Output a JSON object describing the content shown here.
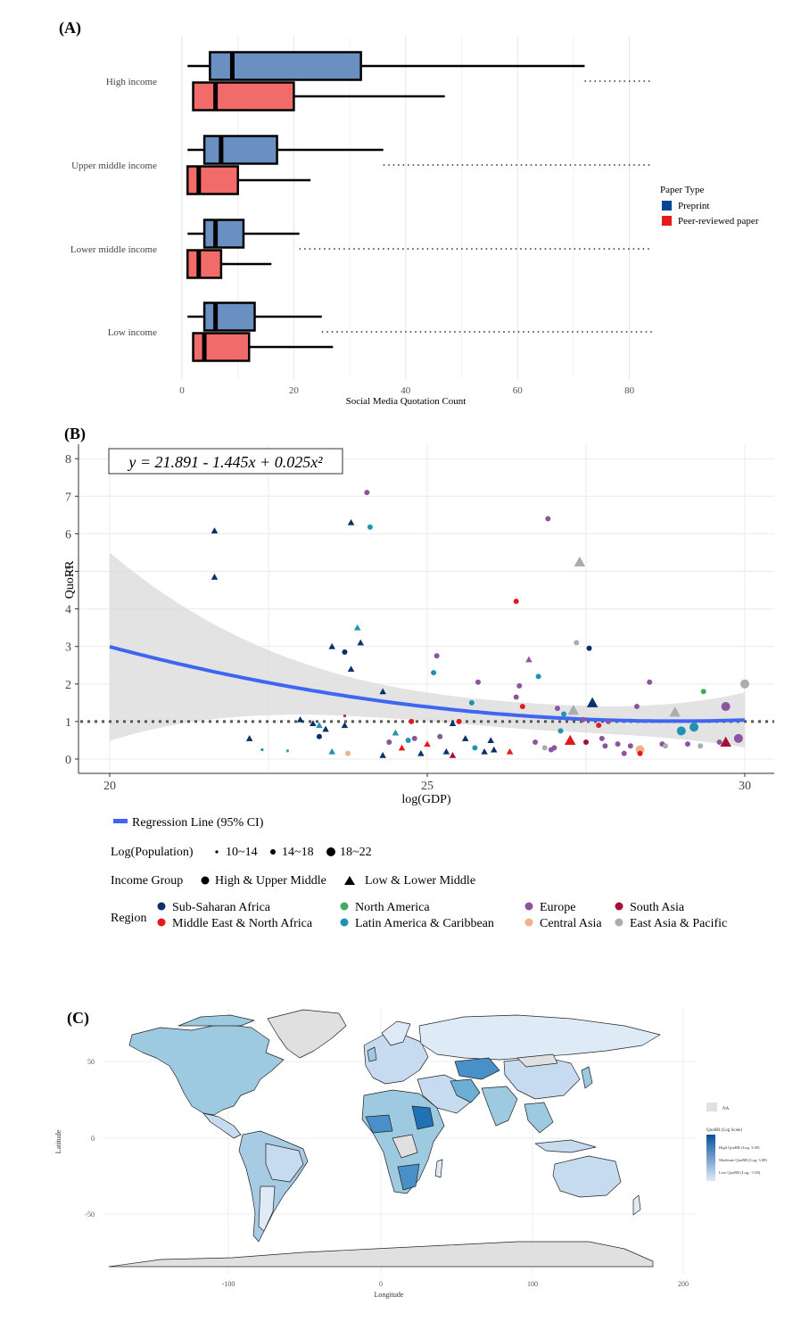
{
  "panel_a": {
    "letter": "(A)",
    "legend_title": "Paper Type",
    "legend_items": [
      {
        "label": "Preprint",
        "color": "#084594"
      },
      {
        "label": "Peer-reviewed paper",
        "color": "#e41a1c"
      }
    ],
    "colors": {
      "preprint_fill": "#6a8fc1",
      "peer_fill": "#f16b6b"
    }
  },
  "panel_b": {
    "letter": "(B)",
    "equation": "y = 21.891 - 1.445x + 0.025x²",
    "legend": {
      "regression_label": "Regression Line (95% CI)",
      "population_title": "Log(Population)",
      "population_levels": [
        "10~14",
        "14~18",
        "18~22"
      ],
      "income_title": "Income Group",
      "income_levels": [
        "High & Upper Middle",
        "Low & Lower Middle"
      ],
      "region_title": "Region",
      "regions": [
        {
          "label": "Sub-Saharan Africa",
          "color": "#08306b"
        },
        {
          "label": "North America",
          "color": "#41ab5d"
        },
        {
          "label": "Europe",
          "color": "#8c55a0"
        },
        {
          "label": "South Asia",
          "color": "#a50f35"
        },
        {
          "label": "Middle East & North Africa",
          "color": "#e31a1c"
        },
        {
          "label": "Latin America & Caribbean",
          "color": "#1f93b0"
        },
        {
          "label": "Central Asia",
          "color": "#f4b08a"
        },
        {
          "label": "East Asia & Pacific",
          "color": "#a8aeb0"
        }
      ]
    }
  },
  "panel_c": {
    "letter": "(C)",
    "xlabel": "Longitude",
    "ylabel": "Latitude",
    "x_ticks": [
      "-100",
      "0",
      "100",
      "200"
    ],
    "y_ticks": [
      "50",
      "0",
      "-50"
    ],
    "legend_na": "NA",
    "legend_title": "QuoRR (Log Scale)",
    "legend_levels": [
      "High QuoRR (Log: 3.00)",
      "Moderate QuoRR (Log: 3.00)",
      "Low QuoRR (Log: -1.00)"
    ],
    "colors": {
      "na": "#e0e0e0",
      "high": "#08519c",
      "low": "#deebf7"
    }
  },
  "chart_data": [
    {
      "type": "boxplot",
      "xlabel": "Social Media Quotation Count",
      "xlim": [
        0,
        85
      ],
      "x_ticks": [
        0,
        20,
        40,
        60,
        80
      ],
      "categories": [
        "High income",
        "Upper middle income",
        "Lower middle income",
        "Low income"
      ],
      "series": [
        {
          "name": "Preprint",
          "boxes": [
            {
              "whisker_low": 1,
              "q1": 5,
              "median": 9,
              "q3": 32,
              "whisker_high": 72
            },
            {
              "whisker_low": 1,
              "q1": 4,
              "median": 7,
              "q3": 17,
              "whisker_high": 36
            },
            {
              "whisker_low": 1,
              "q1": 4,
              "median": 6,
              "q3": 11,
              "whisker_high": 21
            },
            {
              "whisker_low": 1,
              "q1": 4,
              "median": 6,
              "q3": 13,
              "whisker_high": 25
            }
          ]
        },
        {
          "name": "Peer-reviewed paper",
          "boxes": [
            {
              "whisker_low": 2,
              "q1": 2,
              "median": 6,
              "q3": 20,
              "whisker_high": 47
            },
            {
              "whisker_low": 1,
              "q1": 1,
              "median": 3,
              "q3": 10,
              "whisker_high": 23
            },
            {
              "whisker_low": 1,
              "q1": 1,
              "median": 3,
              "q3": 7,
              "whisker_high": 16
            },
            {
              "whisker_low": 2,
              "q1": 2,
              "median": 4,
              "q3": 12,
              "whisker_high": 27
            }
          ]
        }
      ],
      "outlier_extent": [
        {
          "from": 72,
          "to": 84
        },
        {
          "from": 36,
          "to": 84
        },
        {
          "from": 21,
          "to": 84
        },
        {
          "from": 25,
          "to": 84
        }
      ]
    },
    {
      "type": "scatter",
      "xlabel": "log(GDP)",
      "ylabel": "QuoRR",
      "xlim": [
        20,
        30
      ],
      "ylim": [
        0,
        8
      ],
      "x_ticks": [
        20,
        25,
        30
      ],
      "y_ticks": [
        0,
        1,
        2,
        3,
        4,
        5,
        6,
        7,
        8
      ],
      "reference_line": 1,
      "regression": {
        "intercept": 21.891,
        "b1": -1.445,
        "b2": 0.025,
        "x_range": [
          20,
          30
        ]
      },
      "points": [
        {
          "x": 21.65,
          "y": 6.08,
          "region": "Sub-Saharan Africa",
          "income": "low",
          "pop": 2
        },
        {
          "x": 21.65,
          "y": 4.85,
          "region": "Sub-Saharan Africa",
          "income": "low",
          "pop": 2
        },
        {
          "x": 22.2,
          "y": 0.55,
          "region": "Sub-Saharan Africa",
          "income": "low",
          "pop": 2
        },
        {
          "x": 22.4,
          "y": 0.25,
          "region": "Latin America & Caribbean",
          "income": "high",
          "pop": 1
        },
        {
          "x": 22.8,
          "y": 0.22,
          "region": "North America",
          "income": "high",
          "pop": 1
        },
        {
          "x": 23.0,
          "y": 1.05,
          "region": "Sub-Saharan Africa",
          "income": "low",
          "pop": 2
        },
        {
          "x": 23.2,
          "y": 0.95,
          "region": "Sub-Saharan Africa",
          "income": "low",
          "pop": 2
        },
        {
          "x": 23.3,
          "y": 0.6,
          "region": "Sub-Saharan Africa",
          "income": "high",
          "pop": 2
        },
        {
          "x": 23.3,
          "y": 0.9,
          "region": "Latin America & Caribbean",
          "income": "low",
          "pop": 2
        },
        {
          "x": 23.4,
          "y": 0.8,
          "region": "Sub-Saharan Africa",
          "income": "low",
          "pop": 2
        },
        {
          "x": 23.5,
          "y": 0.2,
          "region": "Latin America & Caribbean",
          "income": "low",
          "pop": 2
        },
        {
          "x": 23.5,
          "y": 3.0,
          "region": "Sub-Saharan Africa",
          "income": "low",
          "pop": 2
        },
        {
          "x": 23.7,
          "y": 2.85,
          "region": "Sub-Saharan Africa",
          "income": "high",
          "pop": 2
        },
        {
          "x": 23.7,
          "y": 0.9,
          "region": "Sub-Saharan Africa",
          "income": "low",
          "pop": 2
        },
        {
          "x": 23.7,
          "y": 1.15,
          "region": "Middle East & North Africa",
          "income": "high",
          "pop": 1
        },
        {
          "x": 23.75,
          "y": 0.15,
          "region": "Central Asia",
          "income": "high",
          "pop": 2
        },
        {
          "x": 23.8,
          "y": 6.3,
          "region": "Sub-Saharan Africa",
          "income": "low",
          "pop": 2
        },
        {
          "x": 23.8,
          "y": 2.4,
          "region": "Sub-Saharan Africa",
          "income": "low",
          "pop": 2
        },
        {
          "x": 23.9,
          "y": 3.5,
          "region": "Latin America & Caribbean",
          "income": "low",
          "pop": 2
        },
        {
          "x": 23.95,
          "y": 3.1,
          "region": "Sub-Saharan Africa",
          "income": "low",
          "pop": 2
        },
        {
          "x": 24.05,
          "y": 7.1,
          "region": "Europe",
          "income": "high",
          "pop": 2
        },
        {
          "x": 24.1,
          "y": 6.18,
          "region": "Latin America & Caribbean",
          "income": "high",
          "pop": 2
        },
        {
          "x": 24.3,
          "y": 1.8,
          "region": "Sub-Saharan Africa",
          "income": "low",
          "pop": 2
        },
        {
          "x": 24.3,
          "y": 0.1,
          "region": "Sub-Saharan Africa",
          "income": "low",
          "pop": 2
        },
        {
          "x": 24.4,
          "y": 0.45,
          "region": "Europe",
          "income": "high",
          "pop": 2
        },
        {
          "x": 24.5,
          "y": 0.7,
          "region": "Latin America & Caribbean",
          "income": "low",
          "pop": 2
        },
        {
          "x": 24.6,
          "y": 0.3,
          "region": "Middle East & North Africa",
          "income": "low",
          "pop": 2
        },
        {
          "x": 24.7,
          "y": 0.5,
          "region": "Latin America & Caribbean",
          "income": "high",
          "pop": 2
        },
        {
          "x": 24.75,
          "y": 1.0,
          "region": "Middle East & North Africa",
          "income": "high",
          "pop": 2
        },
        {
          "x": 24.8,
          "y": 0.55,
          "region": "Europe",
          "income": "high",
          "pop": 2
        },
        {
          "x": 24.9,
          "y": 0.15,
          "region": "Sub-Saharan Africa",
          "income": "low",
          "pop": 2
        },
        {
          "x": 25.0,
          "y": 0.4,
          "region": "Middle East & North Africa",
          "income": "low",
          "pop": 2
        },
        {
          "x": 25.1,
          "y": 2.3,
          "region": "Latin America & Caribbean",
          "income": "high",
          "pop": 2
        },
        {
          "x": 25.15,
          "y": 2.75,
          "region": "Europe",
          "income": "high",
          "pop": 2
        },
        {
          "x": 25.2,
          "y": 0.6,
          "region": "Europe",
          "income": "high",
          "pop": 2
        },
        {
          "x": 25.3,
          "y": 0.2,
          "region": "Sub-Saharan Africa",
          "income": "low",
          "pop": 2
        },
        {
          "x": 25.4,
          "y": 0.95,
          "region": "Sub-Saharan Africa",
          "income": "low",
          "pop": 2
        },
        {
          "x": 25.4,
          "y": 0.1,
          "region": "South Asia",
          "income": "low",
          "pop": 2
        },
        {
          "x": 25.5,
          "y": 1.0,
          "region": "Middle East & North Africa",
          "income": "high",
          "pop": 2
        },
        {
          "x": 25.6,
          "y": 0.55,
          "region": "Sub-Saharan Africa",
          "income": "low",
          "pop": 2
        },
        {
          "x": 25.7,
          "y": 1.5,
          "region": "Latin America & Caribbean",
          "income": "high",
          "pop": 2
        },
        {
          "x": 25.75,
          "y": 0.3,
          "region": "Latin America & Caribbean",
          "income": "high",
          "pop": 2
        },
        {
          "x": 25.8,
          "y": 2.05,
          "region": "Europe",
          "income": "high",
          "pop": 2
        },
        {
          "x": 25.9,
          "y": 0.2,
          "region": "Sub-Saharan Africa",
          "income": "low",
          "pop": 2
        },
        {
          "x": 26.0,
          "y": 0.5,
          "region": "Sub-Saharan Africa",
          "income": "low",
          "pop": 2
        },
        {
          "x": 26.05,
          "y": 0.25,
          "region": "Sub-Saharan Africa",
          "income": "low",
          "pop": 2
        },
        {
          "x": 26.3,
          "y": 0.2,
          "region": "Middle East & North Africa",
          "income": "low",
          "pop": 2
        },
        {
          "x": 26.4,
          "y": 4.2,
          "region": "Middle East & North Africa",
          "income": "high",
          "pop": 2
        },
        {
          "x": 26.4,
          "y": 1.65,
          "region": "Europe",
          "income": "high",
          "pop": 2
        },
        {
          "x": 26.45,
          "y": 1.95,
          "region": "Europe",
          "income": "high",
          "pop": 2
        },
        {
          "x": 26.5,
          "y": 1.4,
          "region": "Middle East & North Africa",
          "income": "high",
          "pop": 2
        },
        {
          "x": 26.6,
          "y": 2.65,
          "region": "Europe",
          "income": "low",
          "pop": 2
        },
        {
          "x": 26.7,
          "y": 0.45,
          "region": "Europe",
          "income": "high",
          "pop": 2
        },
        {
          "x": 26.75,
          "y": 2.2,
          "region": "Latin America & Caribbean",
          "income": "high",
          "pop": 2
        },
        {
          "x": 26.85,
          "y": 0.3,
          "region": "East Asia & Pacific",
          "income": "high",
          "pop": 2
        },
        {
          "x": 26.9,
          "y": 6.4,
          "region": "Europe",
          "income": "high",
          "pop": 2
        },
        {
          "x": 26.95,
          "y": 0.25,
          "region": "Europe",
          "income": "high",
          "pop": 2
        },
        {
          "x": 27.0,
          "y": 0.3,
          "region": "Europe",
          "income": "high",
          "pop": 2
        },
        {
          "x": 27.05,
          "y": 1.35,
          "region": "Europe",
          "income": "high",
          "pop": 2
        },
        {
          "x": 27.1,
          "y": 0.75,
          "region": "Latin America & Caribbean",
          "income": "high",
          "pop": 2
        },
        {
          "x": 27.15,
          "y": 1.2,
          "region": "Latin America & Caribbean",
          "income": "high",
          "pop": 2
        },
        {
          "x": 27.25,
          "y": 0.5,
          "region": "Middle East & North Africa",
          "income": "low",
          "pop": 3
        },
        {
          "x": 27.3,
          "y": 1.3,
          "region": "East Asia & Pacific",
          "income": "low",
          "pop": 3
        },
        {
          "x": 27.35,
          "y": 3.1,
          "region": "East Asia & Pacific",
          "income": "high",
          "pop": 2
        },
        {
          "x": 27.4,
          "y": 5.25,
          "region": "East Asia & Pacific",
          "income": "low",
          "pop": 3
        },
        {
          "x": 27.45,
          "y": 1.05,
          "region": "Europe",
          "income": "high",
          "pop": 2
        },
        {
          "x": 27.5,
          "y": 0.45,
          "region": "South Asia",
          "income": "high",
          "pop": 2
        },
        {
          "x": 27.55,
          "y": 2.95,
          "region": "Sub-Saharan Africa",
          "income": "high",
          "pop": 2
        },
        {
          "x": 27.6,
          "y": 1.5,
          "region": "Sub-Saharan Africa",
          "income": "low",
          "pop": 3
        },
        {
          "x": 27.7,
          "y": 0.9,
          "region": "Middle East & North Africa",
          "income": "high",
          "pop": 2
        },
        {
          "x": 27.75,
          "y": 0.55,
          "region": "Europe",
          "income": "high",
          "pop": 2
        },
        {
          "x": 27.8,
          "y": 0.35,
          "region": "Europe",
          "income": "high",
          "pop": 2
        },
        {
          "x": 27.85,
          "y": 1.0,
          "region": "Europe",
          "income": "high",
          "pop": 2
        },
        {
          "x": 28.0,
          "y": 0.4,
          "region": "Europe",
          "income": "high",
          "pop": 2
        },
        {
          "x": 28.1,
          "y": 0.15,
          "region": "Europe",
          "income": "high",
          "pop": 2
        },
        {
          "x": 28.2,
          "y": 0.35,
          "region": "Europe",
          "income": "high",
          "pop": 2
        },
        {
          "x": 28.3,
          "y": 1.4,
          "region": "Europe",
          "income": "high",
          "pop": 2
        },
        {
          "x": 28.35,
          "y": 0.25,
          "region": "Central Asia",
          "income": "high",
          "pop": 3
        },
        {
          "x": 28.35,
          "y": 0.15,
          "region": "Middle East & North Africa",
          "income": "high",
          "pop": 2
        },
        {
          "x": 28.5,
          "y": 2.05,
          "region": "Europe",
          "income": "high",
          "pop": 2
        },
        {
          "x": 28.7,
          "y": 0.4,
          "region": "Europe",
          "income": "high",
          "pop": 2
        },
        {
          "x": 28.75,
          "y": 0.35,
          "region": "East Asia & Pacific",
          "income": "high",
          "pop": 2
        },
        {
          "x": 28.9,
          "y": 1.25,
          "region": "East Asia & Pacific",
          "income": "low",
          "pop": 3
        },
        {
          "x": 29.0,
          "y": 0.75,
          "region": "Latin America & Caribbean",
          "income": "high",
          "pop": 3
        },
        {
          "x": 29.1,
          "y": 0.4,
          "region": "Europe",
          "income": "high",
          "pop": 2
        },
        {
          "x": 29.2,
          "y": 0.85,
          "region": "Latin America & Caribbean",
          "income": "high",
          "pop": 3
        },
        {
          "x": 29.3,
          "y": 0.35,
          "region": "East Asia & Pacific",
          "income": "high",
          "pop": 2
        },
        {
          "x": 29.35,
          "y": 1.8,
          "region": "North America",
          "income": "high",
          "pop": 2
        },
        {
          "x": 29.6,
          "y": 0.45,
          "region": "Europe",
          "income": "high",
          "pop": 2
        },
        {
          "x": 29.7,
          "y": 0.45,
          "region": "South Asia",
          "income": "low",
          "pop": 3
        },
        {
          "x": 29.7,
          "y": 1.4,
          "region": "Europe",
          "income": "high",
          "pop": 3
        },
        {
          "x": 29.9,
          "y": 0.55,
          "region": "Europe",
          "income": "high",
          "pop": 3
        },
        {
          "x": 30.0,
          "y": 2.0,
          "region": "East Asia & Pacific",
          "income": "high",
          "pop": 3
        }
      ]
    }
  ]
}
